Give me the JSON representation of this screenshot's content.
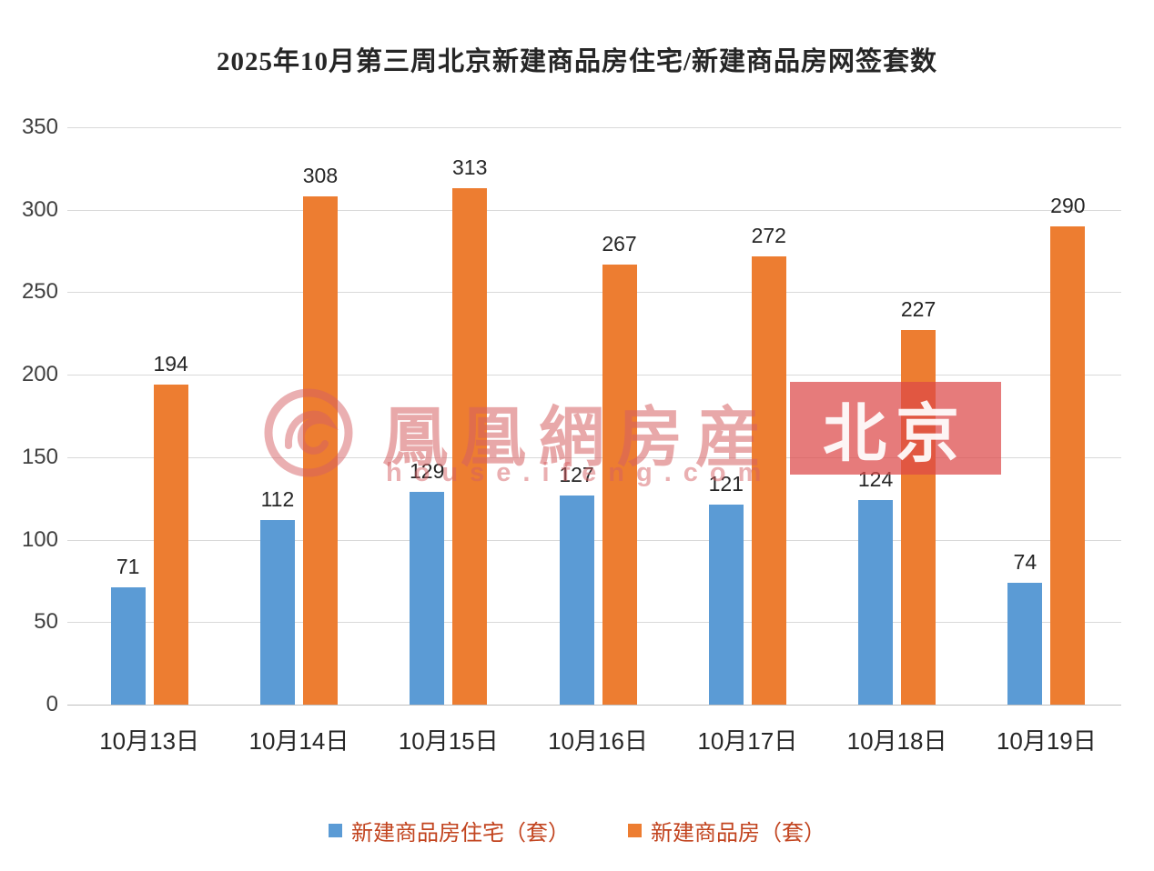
{
  "chart_data": {
    "type": "bar",
    "title": "2025年10月第三周北京新建商品房住宅/新建商品房网签套数",
    "categories": [
      "10月13日",
      "10月14日",
      "10月15日",
      "10月16日",
      "10月17日",
      "10月18日",
      "10月19日"
    ],
    "series": [
      {
        "name": "新建商品房住宅（套）",
        "color": "#5B9BD5",
        "values": [
          71,
          112,
          129,
          127,
          121,
          124,
          74
        ]
      },
      {
        "name": "新建商品房（套）",
        "color": "#ED7D31",
        "values": [
          194,
          308,
          313,
          267,
          272,
          227,
          290
        ]
      }
    ],
    "ylim": [
      0,
      350
    ],
    "yticks": [
      0,
      50,
      100,
      150,
      200,
      250,
      300,
      350
    ],
    "grid": true,
    "legend_position": "bottom",
    "legend_text_color": "#c2441f",
    "gridline_color": "#d9d9d9"
  },
  "watermark": {
    "brand": "鳳凰網房産",
    "url": "house.ifeng.com",
    "badge": "北京",
    "tint": "#d66063"
  }
}
